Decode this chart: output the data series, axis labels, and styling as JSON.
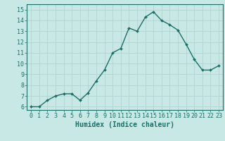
{
  "x": [
    0,
    1,
    2,
    3,
    4,
    5,
    6,
    7,
    8,
    9,
    10,
    11,
    12,
    13,
    14,
    15,
    16,
    17,
    18,
    19,
    20,
    21,
    22,
    23
  ],
  "y": [
    6.0,
    6.0,
    6.6,
    7.0,
    7.2,
    7.2,
    6.6,
    7.3,
    8.4,
    9.4,
    11.0,
    11.4,
    13.3,
    13.0,
    14.3,
    14.8,
    14.0,
    13.6,
    13.1,
    11.8,
    10.4,
    9.4,
    9.4,
    9.8
  ],
  "line_color": "#1a7068",
  "marker": "D",
  "marker_size": 2.0,
  "bg_color": "#c8e8e5",
  "grid_color": "#b0d4d0",
  "tick_color": "#1a7068",
  "xlabel": "Humidex (Indice chaleur)",
  "xlabel_fontsize": 7,
  "ylabel_ticks": [
    6,
    7,
    8,
    9,
    10,
    11,
    12,
    13,
    14,
    15
  ],
  "xlim": [
    -0.5,
    23.5
  ],
  "ylim": [
    5.7,
    15.5
  ],
  "xticks": [
    0,
    1,
    2,
    3,
    4,
    5,
    6,
    7,
    8,
    9,
    10,
    11,
    12,
    13,
    14,
    15,
    16,
    17,
    18,
    19,
    20,
    21,
    22,
    23
  ],
  "line_width": 1.0,
  "tick_fontsize": 6.0
}
